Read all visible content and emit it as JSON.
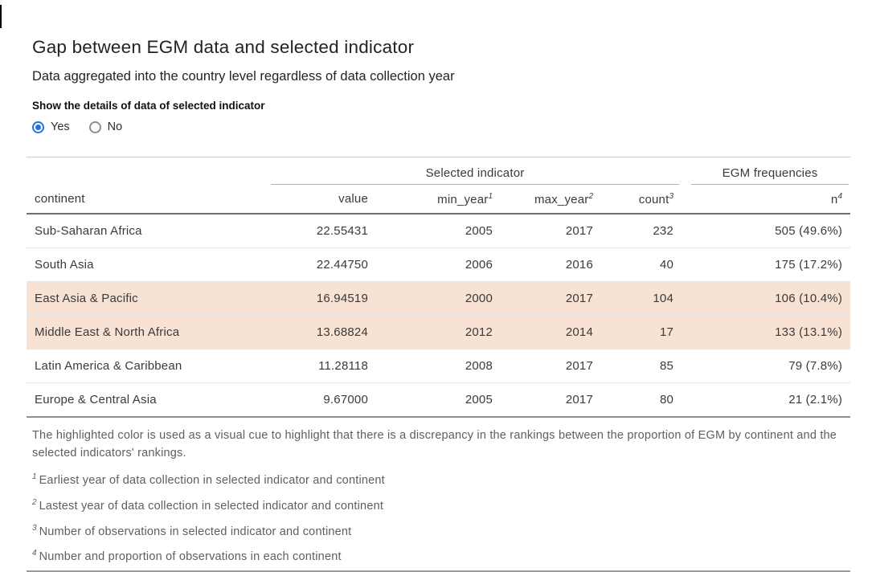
{
  "page": {
    "title": "Gap between EGM data and selected indicator",
    "subtitle": "Data aggregated into the country level regardless of data collection year"
  },
  "controls": {
    "label": "Show the details of data of selected indicator",
    "options": [
      {
        "label": "Yes",
        "selected": true
      },
      {
        "label": "No",
        "selected": false
      }
    ]
  },
  "colors": {
    "accent": "#2374e1",
    "highlight": "#f8e2d4"
  },
  "table": {
    "spanners": [
      {
        "label": "Selected indicator"
      },
      {
        "label": "EGM frequencies"
      }
    ],
    "columns": [
      {
        "label": "continent",
        "sup": ""
      },
      {
        "label": "value",
        "sup": ""
      },
      {
        "label": "min_year",
        "sup": "1"
      },
      {
        "label": "max_year",
        "sup": "2"
      },
      {
        "label": "count",
        "sup": "3"
      },
      {
        "label": "n",
        "sup": "4"
      }
    ],
    "rows": [
      {
        "continent": "Sub-Saharan Africa",
        "value": "22.55431",
        "min_year": "2005",
        "max_year": "2017",
        "count": "232",
        "n": "505 (49.6%)",
        "highlighted": false
      },
      {
        "continent": "South Asia",
        "value": "22.44750",
        "min_year": "2006",
        "max_year": "2016",
        "count": "40",
        "n": "175 (17.2%)",
        "highlighted": false
      },
      {
        "continent": "East Asia & Pacific",
        "value": "16.94519",
        "min_year": "2000",
        "max_year": "2017",
        "count": "104",
        "n": "106 (10.4%)",
        "highlighted": true
      },
      {
        "continent": "Middle East & North Africa",
        "value": "13.68824",
        "min_year": "2012",
        "max_year": "2014",
        "count": "17",
        "n": "133 (13.1%)",
        "highlighted": true
      },
      {
        "continent": "Latin America & Caribbean",
        "value": "11.28118",
        "min_year": "2008",
        "max_year": "2017",
        "count": "85",
        "n": "79 (7.8%)",
        "highlighted": false
      },
      {
        "continent": "Europe & Central Asia",
        "value": "9.67000",
        "min_year": "2005",
        "max_year": "2017",
        "count": "80",
        "n": "21 (2.1%)",
        "highlighted": false
      }
    ]
  },
  "footnotes": {
    "note": "The highlighted color is used as a visual cue to highlight that there is a discrepancy in the rankings between the proportion of EGM by continent and the selected indicators' rankings.",
    "items": [
      {
        "sup": "1",
        "text": "Earliest year of data collection in selected indicator and continent"
      },
      {
        "sup": "2",
        "text": "Lastest year of data collection in selected indicator and continent"
      },
      {
        "sup": "3",
        "text": "Number of observations in selected indicator and continent"
      },
      {
        "sup": "4",
        "text": "Number and proportion of observations in each continent"
      }
    ]
  }
}
